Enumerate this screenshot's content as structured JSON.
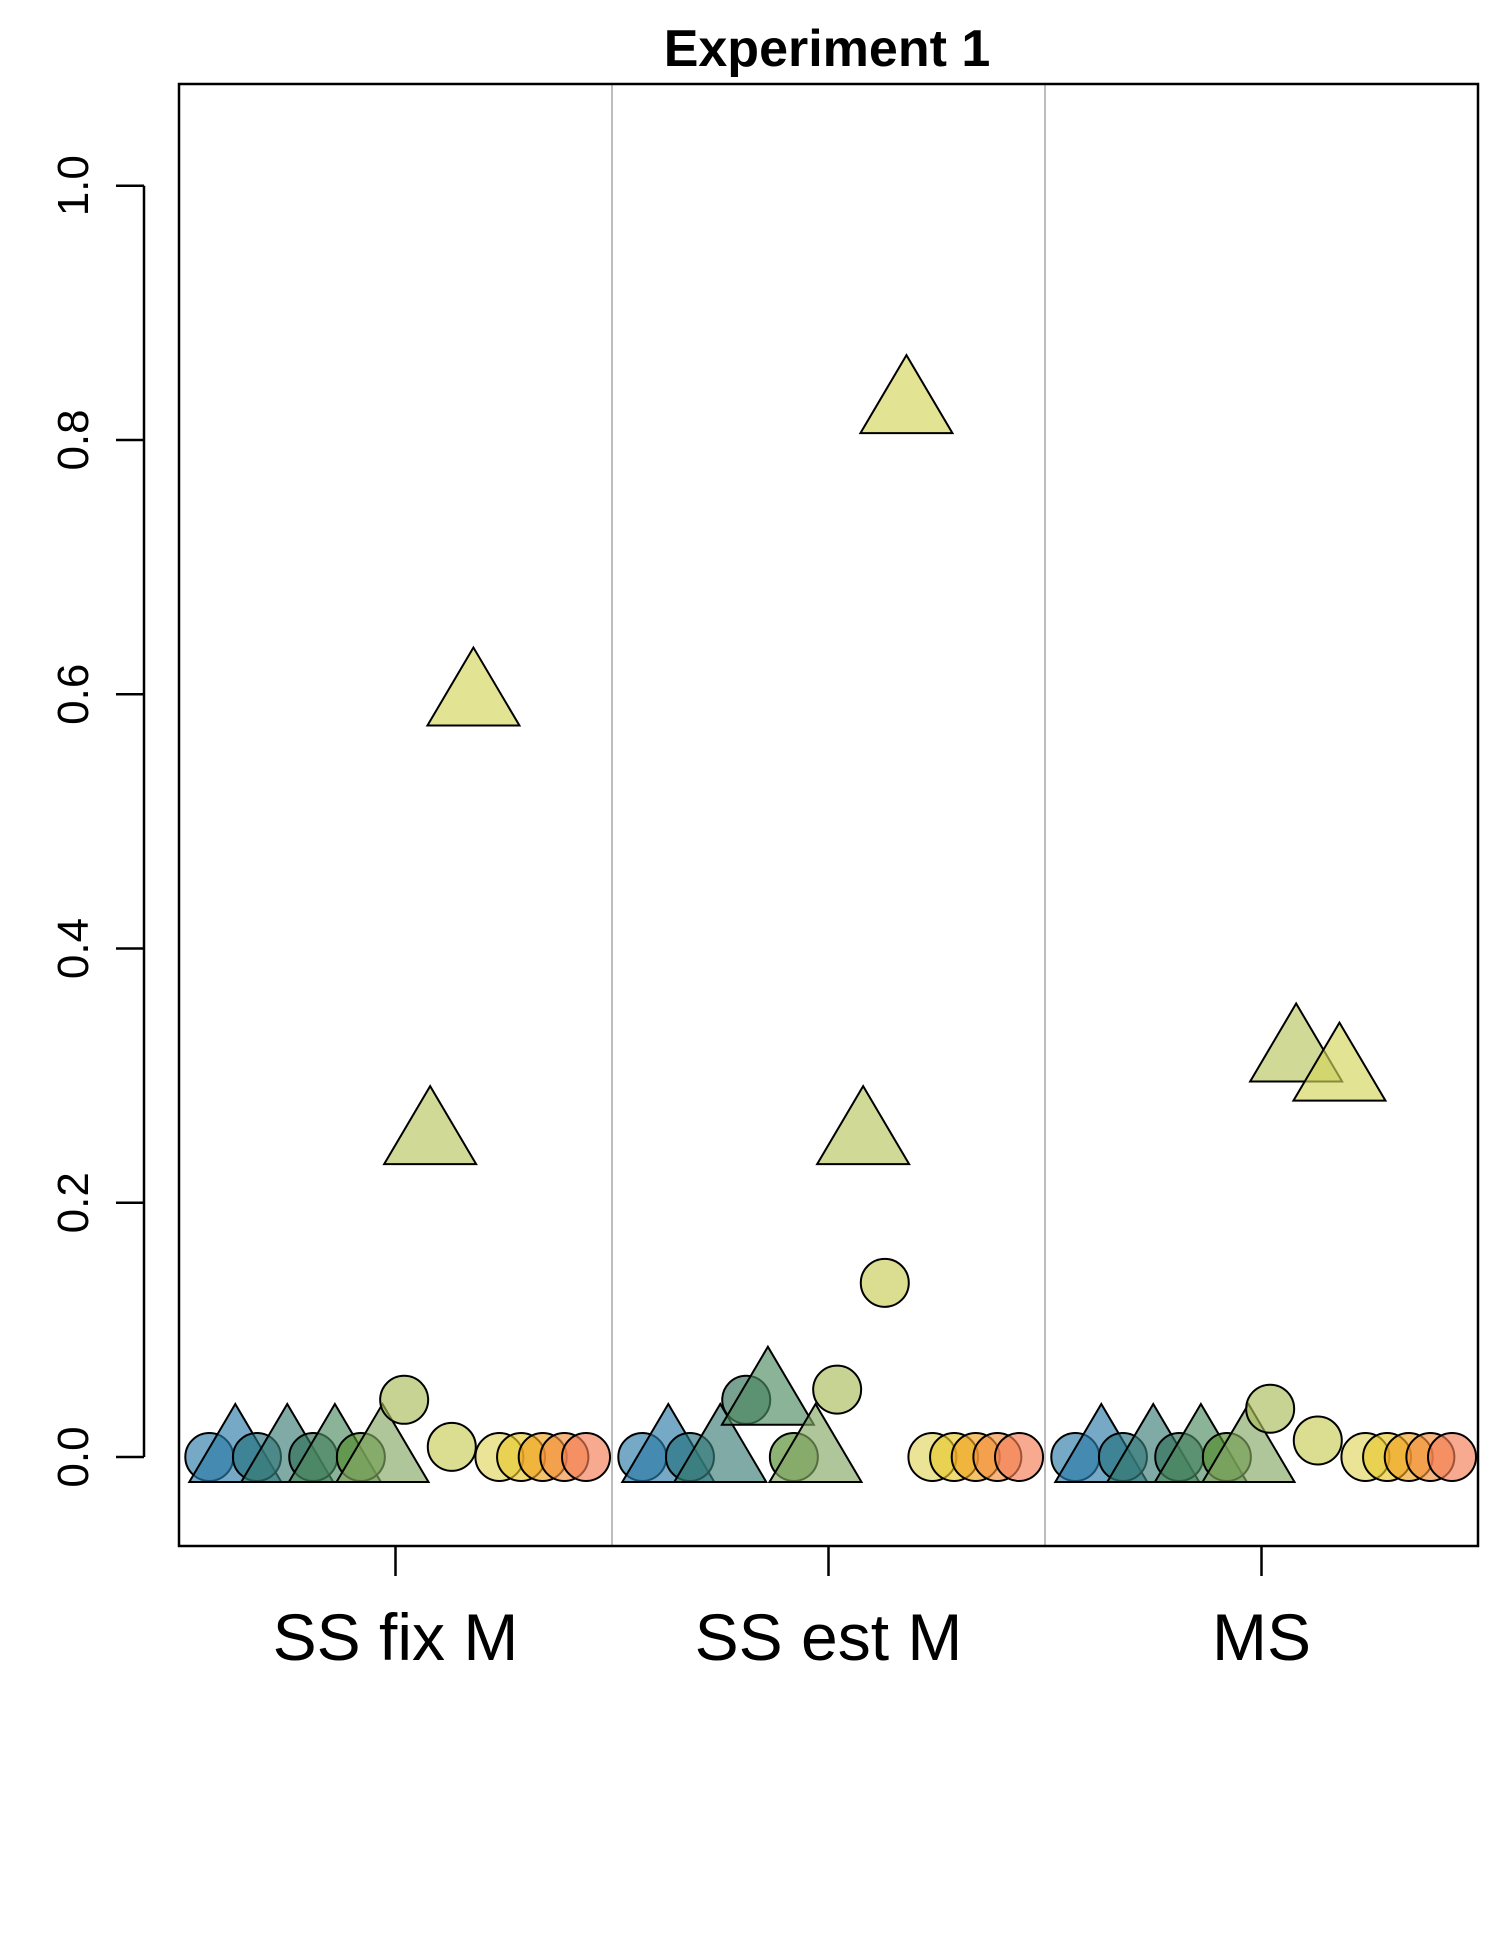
{
  "chart_data": {
    "type": "scatter",
    "title": "Experiment 1",
    "xlabel": "",
    "ylabel": "",
    "categories": [
      "SS fix M",
      "SS est M",
      "MS"
    ],
    "ylim": [
      -0.07,
      1.08
    ],
    "yticks": [
      0.0,
      0.2,
      0.4,
      0.6,
      0.8,
      1.0
    ],
    "ytick_labels": [
      "0.0",
      "0.2",
      "0.4",
      "0.6",
      "0.8",
      "1.0"
    ],
    "grid": false,
    "panel_separators": true,
    "legend": "none",
    "marker_fill_opacity": 0.65,
    "points": [
      {
        "panel": "SS fix M",
        "offset": -0.43,
        "y": 0.0,
        "shape": "circle",
        "color": "#2b7ba6"
      },
      {
        "panel": "SS fix M",
        "offset": -0.37,
        "y": 0.0,
        "shape": "triangle",
        "color": "#2b7ba6"
      },
      {
        "panel": "SS fix M",
        "offset": -0.32,
        "y": 0.0,
        "shape": "circle",
        "color": "#22707c"
      },
      {
        "panel": "SS fix M",
        "offset": -0.25,
        "y": 0.0,
        "shape": "triangle",
        "color": "#3b7d76"
      },
      {
        "panel": "SS fix M",
        "offset": -0.19,
        "y": 0.0,
        "shape": "circle",
        "color": "#2f6e58"
      },
      {
        "panel": "SS fix M",
        "offset": -0.14,
        "y": 0.0,
        "shape": "triangle",
        "color": "#4d8a5f"
      },
      {
        "panel": "SS fix M",
        "offset": -0.08,
        "y": 0.0,
        "shape": "circle",
        "color": "#4f8a2a"
      },
      {
        "panel": "SS fix M",
        "offset": -0.03,
        "y": 0.0,
        "shape": "triangle",
        "color": "#84a865"
      },
      {
        "panel": "SS fix M",
        "offset": 0.02,
        "y": 0.045,
        "shape": "circle",
        "color": "#a8bb57"
      },
      {
        "panel": "SS fix M",
        "offset": 0.08,
        "y": 0.25,
        "shape": "triangle",
        "color": "#b8c45e"
      },
      {
        "panel": "SS fix M",
        "offset": 0.13,
        "y": 0.008,
        "shape": "circle",
        "color": "#c7cc55"
      },
      {
        "panel": "SS fix M",
        "offset": 0.18,
        "y": 0.595,
        "shape": "triangle",
        "color": "#d4d45a"
      },
      {
        "panel": "SS fix M",
        "offset": 0.24,
        "y": 0.0,
        "shape": "circle",
        "color": "#e0d65f"
      },
      {
        "panel": "SS fix M",
        "offset": 0.29,
        "y": 0.0,
        "shape": "circle",
        "color": "#e8c72b"
      },
      {
        "panel": "SS fix M",
        "offset": 0.34,
        "y": 0.0,
        "shape": "circle",
        "color": "#f0a21e"
      },
      {
        "panel": "SS fix M",
        "offset": 0.39,
        "y": 0.0,
        "shape": "circle",
        "color": "#f28f3c"
      },
      {
        "panel": "SS fix M",
        "offset": 0.44,
        "y": 0.0,
        "shape": "circle",
        "color": "#f27d55"
      },
      {
        "panel": "SS est M",
        "offset": -0.43,
        "y": 0.0,
        "shape": "circle",
        "color": "#2b7ba6"
      },
      {
        "panel": "SS est M",
        "offset": -0.37,
        "y": 0.0,
        "shape": "triangle",
        "color": "#2b7ba6"
      },
      {
        "panel": "SS est M",
        "offset": -0.32,
        "y": 0.0,
        "shape": "circle",
        "color": "#22707c"
      },
      {
        "panel": "SS est M",
        "offset": -0.25,
        "y": 0.0,
        "shape": "triangle",
        "color": "#3b7d76"
      },
      {
        "panel": "SS est M",
        "offset": -0.19,
        "y": 0.045,
        "shape": "circle",
        "color": "#2f6e58"
      },
      {
        "panel": "SS est M",
        "offset": -0.14,
        "y": 0.045,
        "shape": "triangle",
        "color": "#4d8a5f"
      },
      {
        "panel": "SS est M",
        "offset": -0.08,
        "y": 0.0,
        "shape": "circle",
        "color": "#4f8a2a"
      },
      {
        "panel": "SS est M",
        "offset": -0.03,
        "y": 0.0,
        "shape": "triangle",
        "color": "#84a865"
      },
      {
        "panel": "SS est M",
        "offset": 0.02,
        "y": 0.053,
        "shape": "circle",
        "color": "#a8bb57"
      },
      {
        "panel": "SS est M",
        "offset": 0.08,
        "y": 0.25,
        "shape": "triangle",
        "color": "#b8c45e"
      },
      {
        "panel": "SS est M",
        "offset": 0.13,
        "y": 0.137,
        "shape": "circle",
        "color": "#c7cc55"
      },
      {
        "panel": "SS est M",
        "offset": 0.18,
        "y": 0.825,
        "shape": "triangle",
        "color": "#d4d45a"
      },
      {
        "panel": "SS est M",
        "offset": 0.24,
        "y": 0.0,
        "shape": "circle",
        "color": "#e0d65f"
      },
      {
        "panel": "SS est M",
        "offset": 0.29,
        "y": 0.0,
        "shape": "circle",
        "color": "#e8c72b"
      },
      {
        "panel": "SS est M",
        "offset": 0.34,
        "y": 0.0,
        "shape": "circle",
        "color": "#f0a21e"
      },
      {
        "panel": "SS est M",
        "offset": 0.39,
        "y": 0.0,
        "shape": "circle",
        "color": "#f28f3c"
      },
      {
        "panel": "SS est M",
        "offset": 0.44,
        "y": 0.0,
        "shape": "circle",
        "color": "#f27d55"
      },
      {
        "panel": "MS",
        "offset": -0.43,
        "y": 0.0,
        "shape": "circle",
        "color": "#2b7ba6"
      },
      {
        "panel": "MS",
        "offset": -0.37,
        "y": 0.0,
        "shape": "triangle",
        "color": "#2b7ba6"
      },
      {
        "panel": "MS",
        "offset": -0.32,
        "y": 0.0,
        "shape": "circle",
        "color": "#22707c"
      },
      {
        "panel": "MS",
        "offset": -0.25,
        "y": 0.0,
        "shape": "triangle",
        "color": "#3b7d76"
      },
      {
        "panel": "MS",
        "offset": -0.19,
        "y": 0.0,
        "shape": "circle",
        "color": "#2f6e58"
      },
      {
        "panel": "MS",
        "offset": -0.14,
        "y": 0.0,
        "shape": "triangle",
        "color": "#4d8a5f"
      },
      {
        "panel": "MS",
        "offset": -0.08,
        "y": 0.0,
        "shape": "circle",
        "color": "#4f8a2a"
      },
      {
        "panel": "MS",
        "offset": -0.03,
        "y": 0.0,
        "shape": "triangle",
        "color": "#84a865"
      },
      {
        "panel": "MS",
        "offset": 0.02,
        "y": 0.038,
        "shape": "circle",
        "color": "#a8bb57"
      },
      {
        "panel": "MS",
        "offset": 0.08,
        "y": 0.315,
        "shape": "triangle",
        "color": "#b8c45e"
      },
      {
        "panel": "MS",
        "offset": 0.13,
        "y": 0.013,
        "shape": "circle",
        "color": "#c7cc55"
      },
      {
        "panel": "MS",
        "offset": 0.18,
        "y": 0.3,
        "shape": "triangle",
        "color": "#d4d45a"
      },
      {
        "panel": "MS",
        "offset": 0.24,
        "y": 0.0,
        "shape": "circle",
        "color": "#e0d65f"
      },
      {
        "panel": "MS",
        "offset": 0.29,
        "y": 0.0,
        "shape": "circle",
        "color": "#e8c72b"
      },
      {
        "panel": "MS",
        "offset": 0.34,
        "y": 0.0,
        "shape": "circle",
        "color": "#f0a21e"
      },
      {
        "panel": "MS",
        "offset": 0.39,
        "y": 0.0,
        "shape": "circle",
        "color": "#f28f3c"
      },
      {
        "panel": "MS",
        "offset": 0.44,
        "y": 0.0,
        "shape": "circle",
        "color": "#f27d55"
      }
    ]
  }
}
